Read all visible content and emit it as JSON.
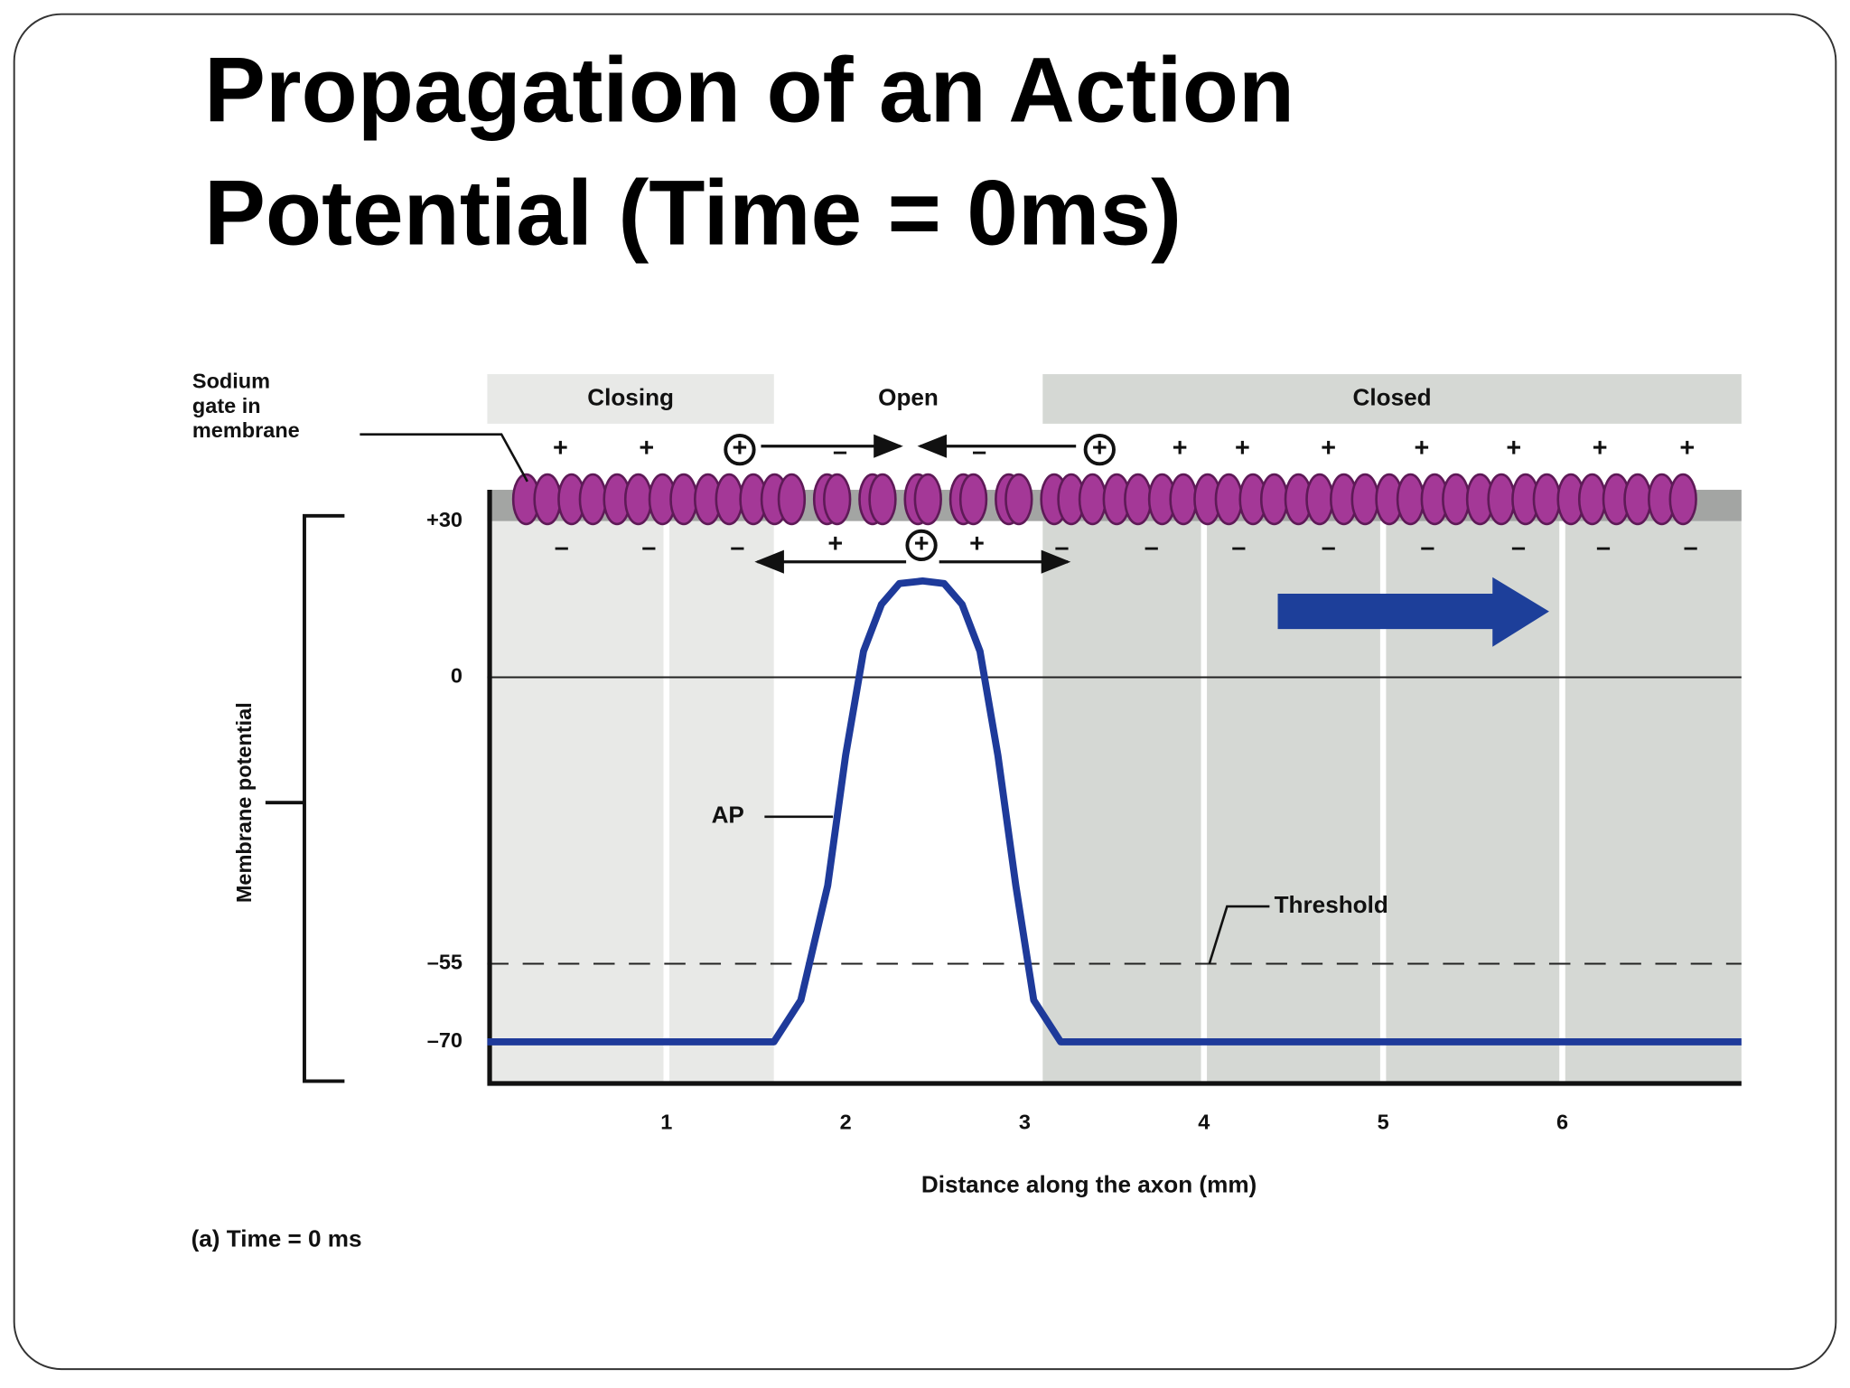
{
  "slide": {
    "title_lines": [
      "Propagation of an Action",
      "Potential (Time = 0ms)"
    ]
  },
  "chart_data": {
    "type": "line",
    "x_label": "Distance along the axon (mm)",
    "y_label": "Membrane potential",
    "caption": "(a) Time = 0 ms",
    "gate_label_lines": [
      "Sodium",
      "gate in",
      "membrane"
    ],
    "curve_label": "AP",
    "color": "#1e3a9a",
    "x": [
      0,
      1.6,
      1.75,
      1.9,
      2.0,
      2.1,
      2.2,
      2.3,
      2.43,
      2.55,
      2.65,
      2.75,
      2.85,
      2.95,
      3.05,
      3.2,
      7
    ],
    "values": [
      -70,
      -70,
      -62,
      -40,
      -15,
      5,
      14,
      18,
      18.5,
      18,
      14,
      5,
      -15,
      -40,
      -62,
      -70,
      -70
    ],
    "threshold": {
      "value": -55,
      "label": "Threshold"
    },
    "regions": [
      {
        "label": "Closing",
        "start": 0,
        "end": 1.6,
        "color": "#e8e9e7"
      },
      {
        "label": "Open",
        "start": 1.6,
        "end": 3.1,
        "color": "#ffffff"
      },
      {
        "label": "Closed",
        "start": 3.1,
        "end": 7,
        "color": "#d5d8d4"
      }
    ],
    "top_charges": [
      "+",
      "+",
      "+",
      "–",
      "–",
      "+",
      "+",
      "+",
      "+",
      "+",
      "+",
      "+",
      "+"
    ],
    "bottom_charges": [
      "–",
      "–",
      "–",
      "+",
      "+",
      "+",
      "–",
      "–",
      "–",
      "–",
      "–",
      "–",
      "–",
      "–"
    ],
    "xlim": [
      0,
      7
    ],
    "xticks": [
      1,
      2,
      3,
      4,
      5,
      6
    ],
    "ylim": [
      -78,
      36
    ],
    "yticks": [
      {
        "value": 30,
        "label": "+30"
      },
      0,
      {
        "value": -55,
        "label": "–55"
      },
      {
        "value": -70,
        "label": "–70"
      }
    ]
  }
}
